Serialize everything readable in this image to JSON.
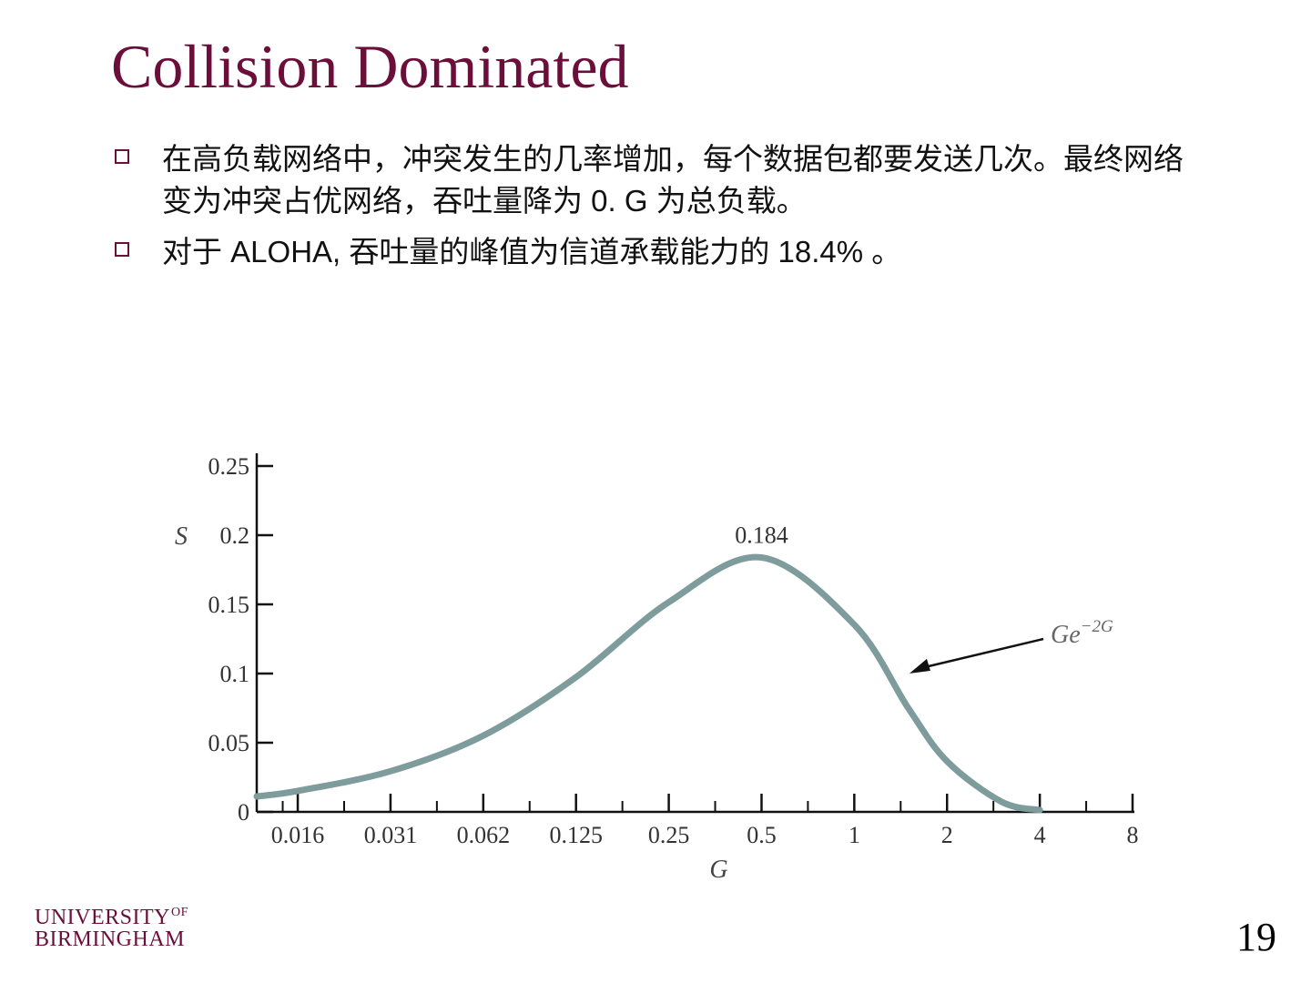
{
  "slide": {
    "title": "Collision Dominated",
    "bullets": [
      "在高负载网络中，冲突发生的几率增加，每个数据包都要发送几次。最终网络变为冲突占优网络，吞吐量降为 0. G 为总负载。",
      "对于 ALOHA,  吞吐量的峰值为信道承载能力的 18.4% 。"
    ],
    "logo": {
      "line1": "UNIVERSITY",
      "of": "OF",
      "line2": "BIRMINGHAM"
    },
    "page_number": "19"
  },
  "colors": {
    "title": "#6b0f3a",
    "curve": "#7f9c9c",
    "axis": "#111111"
  },
  "chart_data": {
    "type": "line",
    "xlabel": "G",
    "ylabel": "S",
    "x_scale": "log2",
    "x_ticks": [
      0.015625,
      0.03125,
      0.0625,
      0.125,
      0.25,
      0.5,
      1,
      2,
      4,
      8
    ],
    "x_tick_labels": [
      "0.016",
      "0.031",
      "0.062",
      "0.125",
      "0.25",
      "0.5",
      "1",
      "2",
      "4",
      "8"
    ],
    "xlim": [
      0.0115,
      8
    ],
    "y_ticks": [
      0,
      0.05,
      0.1,
      0.15,
      0.2,
      0.25
    ],
    "y_tick_labels": [
      "0",
      "0.05",
      "0.1",
      "0.15",
      "0.2",
      "0.25"
    ],
    "ylim": [
      0,
      0.25
    ],
    "series": [
      {
        "formula": "Ge^-2G",
        "x": [
          0.0115,
          0.015625,
          0.03125,
          0.0625,
          0.125,
          0.25,
          0.5,
          1,
          1.5,
          2,
          3,
          4
        ],
        "y": [
          0.0112,
          0.0152,
          0.0294,
          0.0551,
          0.0974,
          0.1516,
          0.1839,
          0.1353,
          0.0747,
          0.0366,
          0.0074,
          0.0013
        ]
      }
    ],
    "annotations": [
      {
        "text": "0.184",
        "x": 0.5,
        "y": 0.184
      },
      {
        "text": "Ge",
        "superscript": "−2G",
        "points_to_x": 1.5
      }
    ],
    "grid": false
  }
}
